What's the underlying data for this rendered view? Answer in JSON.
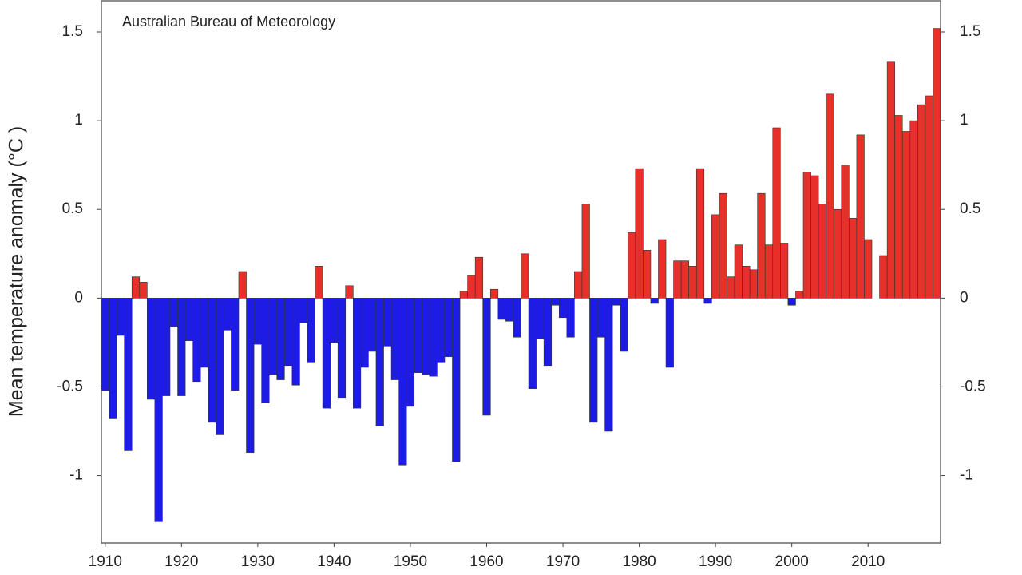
{
  "chart_data": {
    "type": "bar",
    "annotation": "Australian Bureau of Meteorology",
    "y_label": "Mean temperature anomaly (°C )",
    "x": [
      1910,
      1911,
      1912,
      1913,
      1914,
      1915,
      1916,
      1917,
      1918,
      1919,
      1920,
      1921,
      1922,
      1923,
      1924,
      1925,
      1926,
      1927,
      1928,
      1929,
      1930,
      1931,
      1932,
      1933,
      1934,
      1935,
      1936,
      1937,
      1938,
      1939,
      1940,
      1941,
      1942,
      1943,
      1944,
      1945,
      1946,
      1947,
      1948,
      1949,
      1950,
      1951,
      1952,
      1953,
      1954,
      1955,
      1956,
      1957,
      1958,
      1959,
      1960,
      1961,
      1962,
      1963,
      1964,
      1965,
      1966,
      1967,
      1968,
      1969,
      1970,
      1971,
      1972,
      1973,
      1974,
      1975,
      1976,
      1977,
      1978,
      1979,
      1980,
      1981,
      1982,
      1983,
      1984,
      1985,
      1986,
      1987,
      1988,
      1989,
      1990,
      1991,
      1992,
      1993,
      1994,
      1995,
      1996,
      1997,
      1998,
      1999,
      2000,
      2001,
      2002,
      2003,
      2004,
      2005,
      2006,
      2007,
      2008,
      2009,
      2010,
      2011,
      2012,
      2013,
      2014,
      2015,
      2016,
      2017,
      2018,
      2019
    ],
    "values": [
      -0.52,
      -0.68,
      -0.21,
      -0.86,
      0.12,
      0.09,
      -0.57,
      -1.26,
      -0.55,
      -0.16,
      -0.55,
      -0.24,
      -0.47,
      -0.39,
      -0.7,
      -0.77,
      -0.18,
      -0.52,
      0.15,
      -0.87,
      -0.26,
      -0.59,
      -0.43,
      -0.46,
      -0.38,
      -0.49,
      -0.14,
      -0.36,
      0.18,
      -0.62,
      -0.25,
      -0.56,
      0.07,
      -0.62,
      -0.39,
      -0.3,
      -0.72,
      -0.27,
      -0.46,
      -0.94,
      -0.61,
      -0.42,
      -0.43,
      -0.44,
      -0.36,
      -0.33,
      -0.92,
      0.04,
      0.13,
      0.23,
      -0.66,
      0.05,
      -0.12,
      -0.13,
      -0.22,
      0.25,
      -0.51,
      -0.23,
      -0.38,
      -0.04,
      -0.11,
      -0.22,
      0.15,
      0.53,
      -0.7,
      -0.22,
      -0.75,
      -0.04,
      -0.3,
      0.37,
      0.73,
      0.27,
      -0.03,
      0.33,
      -0.39,
      0.21,
      0.21,
      0.18,
      0.73,
      -0.03,
      0.47,
      0.59,
      0.12,
      0.3,
      0.18,
      0.16,
      0.59,
      0.3,
      0.96,
      0.31,
      -0.04,
      0.04,
      0.71,
      0.69,
      0.53,
      1.15,
      0.5,
      0.75,
      0.45,
      0.92,
      0.33,
      0.0,
      0.24,
      1.33,
      1.03,
      0.94,
      1.0,
      1.09,
      1.14,
      1.52
    ],
    "positive_color": "#e8302a",
    "negative_color": "#1c1ce6",
    "xlim": [
      1909.5,
      2019.5
    ],
    "xticks": [
      1910,
      1920,
      1930,
      1940,
      1950,
      1960,
      1970,
      1980,
      1990,
      2000,
      2010
    ],
    "ylim": [
      -1.38,
      1.68
    ],
    "yticks": [
      -1,
      -0.5,
      0,
      0.5,
      1,
      1.5
    ],
    "y2lim": [
      -1.38,
      1.68
    ],
    "y2ticks": [
      -1,
      -0.5,
      0,
      0.5,
      1,
      1.5
    ]
  }
}
